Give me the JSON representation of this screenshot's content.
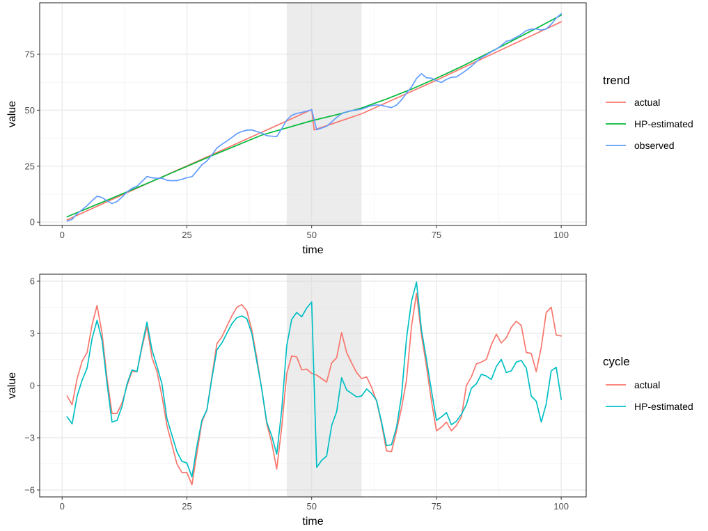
{
  "chart_data": [
    {
      "type": "line",
      "ylabel": "value",
      "xlabel": "time",
      "xlim": [
        -4.5,
        105
      ],
      "ylim": [
        -1.5,
        98
      ],
      "xticks": [
        0,
        25,
        50,
        75,
        100
      ],
      "yticks": [
        0,
        25,
        50,
        75
      ],
      "shaded_region": [
        45,
        60
      ],
      "legend": {
        "title": "trend",
        "position": "right"
      },
      "series": [
        {
          "name": "actual",
          "color": "#F8766D",
          "x": [
            1,
            15,
            30,
            45,
            50,
            50.5,
            60,
            75,
            88,
            100
          ],
          "y": [
            1,
            15.2,
            30.1,
            45.2,
            50.3,
            41.2,
            48.4,
            63.4,
            77.0,
            89.5
          ]
        },
        {
          "name": "HP-estimated",
          "color": "#00BA38",
          "x": [
            1,
            10,
            20,
            30,
            40,
            50,
            55,
            60,
            65,
            70,
            75,
            80,
            85,
            90,
            95,
            100
          ],
          "y": [
            2.4,
            10.7,
            20.1,
            29.7,
            38.9,
            45.3,
            48.0,
            51.0,
            55.0,
            59.4,
            64.3,
            69.5,
            75.1,
            80.8,
            86.6,
            92.5
          ]
        },
        {
          "name": "observed",
          "color": "#619CFF",
          "x": [
            1,
            2,
            3,
            4,
            5,
            6,
            7,
            8,
            9,
            10,
            11,
            12,
            13,
            14,
            15,
            16,
            17,
            18,
            19,
            20,
            21,
            22,
            23,
            24,
            25,
            26,
            27,
            28,
            29,
            30,
            31,
            32,
            33,
            34,
            35,
            36,
            37,
            38,
            39,
            40,
            41,
            42,
            43,
            44,
            45,
            46,
            47,
            48,
            49,
            50,
            51,
            52,
            53,
            54,
            55,
            56,
            57,
            58,
            59,
            60,
            61,
            62,
            63,
            64,
            65,
            66,
            67,
            68,
            69,
            70,
            71,
            72,
            73,
            74,
            75,
            76,
            77,
            78,
            79,
            80,
            81,
            82,
            83,
            84,
            85,
            86,
            87,
            88,
            89,
            90,
            91,
            92,
            93,
            94,
            95,
            96,
            97,
            98,
            99,
            100
          ],
          "y": [
            0.5,
            1.2,
            3.8,
            5.5,
            7.4,
            9.6,
            11.6,
            11.0,
            9.5,
            8.3,
            9.2,
            11.2,
            13.5,
            15.1,
            16.0,
            18.2,
            20.4,
            19.8,
            19.6,
            19.6,
            18.7,
            18.5,
            18.6,
            19.1,
            19.9,
            20.3,
            22.8,
            25.6,
            27.3,
            30.0,
            33.1,
            34.8,
            36.2,
            37.8,
            39.5,
            40.5,
            41.1,
            41.2,
            40.5,
            39.8,
            38.6,
            38.4,
            38.2,
            41.8,
            45.6,
            47.7,
            48.6,
            49.0,
            49.6,
            50.2,
            41.3,
            42.0,
            42.8,
            44.8,
            46.8,
            48.4,
            49.3,
            49.8,
            50.1,
            50.5,
            51.3,
            52.0,
            52.4,
            52.2,
            51.6,
            51.2,
            52.3,
            54.6,
            57.6,
            60.4,
            64.2,
            66.3,
            64.5,
            64.3,
            63.2,
            62.4,
            63.8,
            64.7,
            64.9,
            66.3,
            67.9,
            69.6,
            71.7,
            73.5,
            74.7,
            76.1,
            77.3,
            78.9,
            80.8,
            81.4,
            82.6,
            83.9,
            85.6,
            86.2,
            86.3,
            85.8,
            86.3,
            88.4,
            91.2,
            93.1
          ]
        }
      ]
    },
    {
      "type": "line",
      "ylabel": "value",
      "xlabel": "time",
      "xlim": [
        -4.5,
        105
      ],
      "ylim": [
        -6.4,
        6.4
      ],
      "xticks": [
        0,
        25,
        50,
        75,
        100
      ],
      "yticks": [
        -6,
        -3,
        0,
        3,
        6
      ],
      "shaded_region": [
        45,
        60
      ],
      "legend": {
        "title": "cycle",
        "position": "right"
      },
      "series": [
        {
          "name": "actual",
          "color": "#F8766D",
          "x": [
            1,
            2,
            3,
            4,
            5,
            6,
            7,
            8,
            9,
            10,
            11,
            12,
            13,
            14,
            15,
            16,
            17,
            18,
            19,
            20,
            21,
            22,
            23,
            24,
            25,
            26,
            27,
            28,
            29,
            30,
            31,
            32,
            33,
            34,
            35,
            36,
            37,
            38,
            39,
            40,
            41,
            42,
            43,
            44,
            45,
            46,
            47,
            48,
            49,
            50,
            51,
            52,
            53,
            54,
            55,
            56,
            57,
            58,
            59,
            60,
            61,
            62,
            63,
            64,
            65,
            66,
            67,
            68,
            69,
            70,
            71,
            72,
            73,
            74,
            75,
            76,
            77,
            78,
            79,
            80,
            81,
            82,
            83,
            84,
            85,
            86,
            87,
            88,
            89,
            90,
            91,
            92,
            93,
            94,
            95,
            96,
            97,
            98,
            99,
            100
          ],
          "y": [
            -0.6,
            -1.1,
            0.4,
            1.4,
            1.9,
            3.5,
            4.6,
            3.0,
            0.4,
            -1.6,
            -1.6,
            -1.0,
            0.0,
            0.8,
            0.8,
            2.2,
            3.4,
            1.6,
            0.8,
            -0.6,
            -2.3,
            -3.4,
            -4.5,
            -5.0,
            -5.0,
            -5.7,
            -3.9,
            -2.1,
            -1.4,
            0.5,
            2.4,
            2.8,
            3.4,
            4.0,
            4.5,
            4.65,
            4.3,
            3.2,
            1.6,
            -0.2,
            -2.2,
            -3.3,
            -4.8,
            -2.4,
            0.7,
            1.7,
            1.65,
            0.9,
            0.95,
            0.7,
            0.6,
            0.4,
            0.2,
            1.3,
            1.6,
            3.05,
            1.9,
            1.3,
            0.75,
            0.4,
            0.5,
            -0.1,
            -0.9,
            -2.2,
            -3.75,
            -3.8,
            -2.6,
            -1.3,
            0.3,
            3.4,
            5.3,
            2.9,
            1.1,
            -0.9,
            -2.6,
            -2.4,
            -2.1,
            -2.6,
            -2.3,
            -1.8,
            0.0,
            0.5,
            1.25,
            1.35,
            1.5,
            2.35,
            2.95,
            2.45,
            2.75,
            3.35,
            3.7,
            3.45,
            1.9,
            1.85,
            0.8,
            2.2,
            4.2,
            4.5,
            2.9,
            2.85
          ]
        },
        {
          "name": "HP-estimated",
          "color": "#00BFC4",
          "x": [
            1,
            2,
            3,
            4,
            5,
            6,
            7,
            8,
            9,
            10,
            11,
            12,
            13,
            14,
            15,
            16,
            17,
            18,
            19,
            20,
            21,
            22,
            23,
            24,
            25,
            26,
            27,
            28,
            29,
            30,
            31,
            32,
            33,
            34,
            35,
            36,
            37,
            38,
            39,
            40,
            41,
            42,
            43,
            44,
            45,
            46,
            47,
            48,
            49,
            50,
            51,
            52,
            53,
            54,
            55,
            56,
            57,
            58,
            59,
            60,
            61,
            62,
            63,
            64,
            65,
            66,
            67,
            68,
            69,
            70,
            71,
            72,
            73,
            74,
            75,
            76,
            77,
            78,
            79,
            80,
            81,
            82,
            83,
            84,
            85,
            86,
            87,
            88,
            89,
            90,
            91,
            92,
            93,
            94,
            95,
            96,
            97,
            98,
            99,
            100
          ],
          "y": [
            -1.8,
            -2.2,
            -0.6,
            0.3,
            1.0,
            2.7,
            3.75,
            2.6,
            0.1,
            -2.1,
            -2.0,
            -1.2,
            0.1,
            0.9,
            0.8,
            2.3,
            3.65,
            2.05,
            1.1,
            0.1,
            -1.9,
            -2.85,
            -3.8,
            -4.35,
            -4.45,
            -5.25,
            -3.5,
            -2.0,
            -1.4,
            0.4,
            2.05,
            2.45,
            3.0,
            3.55,
            3.9,
            4.0,
            3.85,
            3.0,
            1.4,
            -0.2,
            -2.1,
            -2.9,
            -3.95,
            -1.4,
            2.3,
            3.8,
            4.2,
            3.95,
            4.45,
            4.8,
            -4.7,
            -4.3,
            -4.05,
            -2.3,
            -1.5,
            0.45,
            -0.25,
            -0.45,
            -0.65,
            -0.6,
            -0.2,
            -0.45,
            -0.85,
            -2.1,
            -3.45,
            -3.4,
            -2.4,
            -0.6,
            2.7,
            4.85,
            5.95,
            3.2,
            1.5,
            -0.3,
            -2.0,
            -1.8,
            -1.55,
            -2.25,
            -2.05,
            -1.65,
            -1.1,
            -0.15,
            0.1,
            0.65,
            0.55,
            0.35,
            1.1,
            1.5,
            0.75,
            0.85,
            1.35,
            1.45,
            1.0,
            -0.6,
            -0.9,
            -2.1,
            -1.05,
            0.85,
            1.05,
            -0.8
          ]
        }
      ]
    }
  ]
}
